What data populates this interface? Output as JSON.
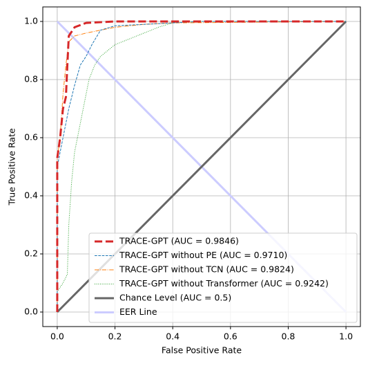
{
  "chart_data": {
    "type": "line",
    "xlabel": "False Positive Rate",
    "ylabel": "True Positive Rate",
    "xlim": [
      -0.05,
      1.05
    ],
    "ylim": [
      -0.05,
      1.05
    ],
    "xticks": [
      {
        "value": 0,
        "label": "0.0"
      },
      0.2,
      0.4,
      0.6,
      0.8,
      {
        "value": 1,
        "label": "1.0"
      }
    ],
    "yticks": [
      {
        "value": 0,
        "label": "0.0"
      },
      0.2,
      0.4,
      0.6,
      0.8,
      {
        "value": 1,
        "label": "1.0"
      }
    ],
    "grid": true,
    "legend": "lower right",
    "series": [
      {
        "name": "TRACE-GPT (AUC = 0.9846)",
        "color": "#d62728",
        "linestyle": "dashed",
        "linewidth": 3,
        "x": [
          0,
          0,
          0.01,
          0.02,
          0.03,
          0.035,
          0.04,
          0.06,
          0.1,
          0.2,
          1
        ],
        "values": [
          0,
          0.53,
          0.6,
          0.7,
          0.74,
          0.85,
          0.95,
          0.98,
          0.995,
          1,
          1
        ]
      },
      {
        "name": "TRACE-GPT without PE (AUC = 0.9710)",
        "color": "#1f77b4",
        "linestyle": "dashed",
        "linewidth": 1,
        "x": [
          0,
          0,
          0.02,
          0.04,
          0.06,
          0.08,
          0.1,
          0.12,
          0.15,
          0.2,
          0.3,
          0.5,
          1
        ],
        "values": [
          0,
          0.5,
          0.6,
          0.7,
          0.78,
          0.85,
          0.88,
          0.92,
          0.97,
          0.985,
          0.99,
          1,
          1
        ]
      },
      {
        "name": "TRACE-GPT without TCN (AUC = 0.9824)",
        "color": "#ff7f0e",
        "linestyle": "dashdot",
        "linewidth": 1,
        "x": [
          0,
          0,
          0.01,
          0.02,
          0.03,
          0.04,
          0.06,
          0.1,
          0.2,
          0.3,
          0.4,
          1
        ],
        "values": [
          0,
          0.53,
          0.6,
          0.75,
          0.85,
          0.93,
          0.95,
          0.96,
          0.98,
          0.99,
          0.995,
          1
        ]
      },
      {
        "name": "TRACE-GPT without Transformer (AUC = 0.9242)",
        "color": "#2ca02c",
        "linestyle": "dotted",
        "linewidth": 1,
        "x": [
          0,
          0,
          0.02,
          0.035,
          0.04,
          0.05,
          0.06,
          0.08,
          0.1,
          0.11,
          0.13,
          0.15,
          0.2,
          0.3,
          0.35,
          0.4,
          0.5,
          1
        ],
        "values": [
          0,
          0.07,
          0.1,
          0.13,
          0.3,
          0.45,
          0.55,
          0.65,
          0.75,
          0.8,
          0.85,
          0.88,
          0.92,
          0.96,
          0.98,
          0.995,
          1,
          1
        ]
      },
      {
        "name": "Chance Level (AUC = 0.5)",
        "color": "#666666",
        "linestyle": "solid",
        "linewidth": 3,
        "x": [
          0,
          1
        ],
        "values": [
          0,
          1
        ]
      },
      {
        "name": "EER Line",
        "color": "#ccccff",
        "linestyle": "solid",
        "linewidth": 3,
        "x": [
          0,
          1
        ],
        "values": [
          1,
          0
        ]
      }
    ]
  }
}
